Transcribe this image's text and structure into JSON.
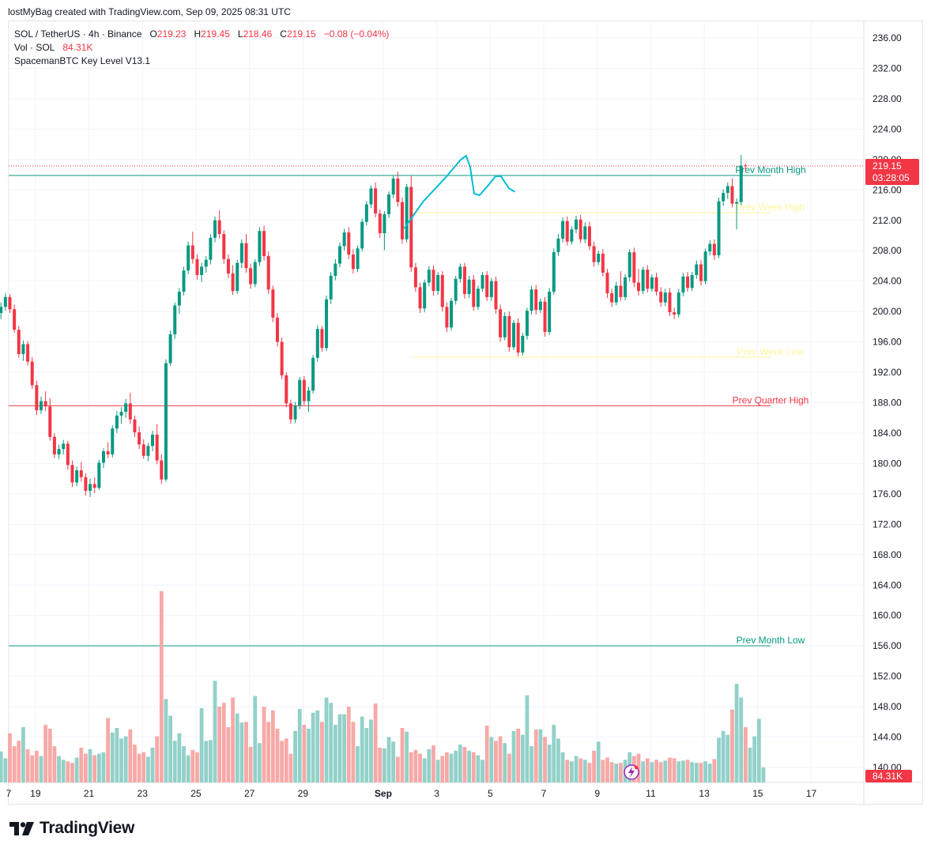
{
  "credit": "lostMyBag created with TradingView.com, Sep 09, 2025 08:31 UTC",
  "brand": "TradingView",
  "legend": {
    "symbol": "SOL / TetherUS · 4h · Binance",
    "o_label": "O",
    "o": "219.23",
    "h_label": "H",
    "h": "219.45",
    "l_label": "L",
    "l": "218.46",
    "c_label": "C",
    "c": "219.15",
    "change": "−0.08 (−0.04%)",
    "vol_label": "Vol · SOL",
    "vol": "84.31K",
    "indicator": "SpacemanBTC Key Level V13.1"
  },
  "colors": {
    "up": "#089981",
    "down": "#f23645",
    "vol_up": "#92d1c9",
    "vol_down": "#f7a9a7",
    "accent_line": "#00bcd4",
    "week_level": "#fff59d"
  },
  "chart_data": {
    "type": "candlestick",
    "timeframe": "4h",
    "ylim": [
      138.6,
      238.2
    ],
    "y_ticks": [
      "236.00",
      "232.00",
      "228.00",
      "224.00",
      "220.00",
      "216.00",
      "212.00",
      "208.00",
      "204.00",
      "200.00",
      "196.00",
      "192.00",
      "188.00",
      "184.00",
      "180.00",
      "176.00",
      "172.00",
      "168.00",
      "164.00",
      "160.00",
      "156.00",
      "152.00",
      "148.00",
      "144.00",
      "140.00"
    ],
    "x_ticks": [
      {
        "label": "7",
        "day": 0
      },
      {
        "label": "19",
        "day": 1
      },
      {
        "label": "21",
        "day": 3
      },
      {
        "label": "23",
        "day": 5
      },
      {
        "label": "25",
        "day": 7
      },
      {
        "label": "27",
        "day": 9
      },
      {
        "label": "29",
        "day": 11
      },
      {
        "label": "Sep",
        "day": 14
      },
      {
        "label": "3",
        "day": 16
      },
      {
        "label": "5",
        "day": 18
      },
      {
        "label": "7",
        "day": 20
      },
      {
        "label": "9",
        "day": 22
      },
      {
        "label": "11",
        "day": 24
      },
      {
        "label": "13",
        "day": 26
      },
      {
        "label": "15",
        "day": 28
      },
      {
        "label": "17",
        "day": 30
      }
    ],
    "last_price": "219.15",
    "countdown": "03:28:05",
    "last_volume": "84.31K",
    "levels": [
      {
        "name": "Prev Month High",
        "value": 217.9,
        "color": "#089981",
        "from_day": 0
      },
      {
        "name": "Prev Week High",
        "value": 213.0,
        "color": "#fff59d",
        "from_day": 15
      },
      {
        "name": "Prev Week Low",
        "value": 194.0,
        "color": "#fff59d",
        "from_day": 15
      },
      {
        "name": "Prev Quarter High",
        "value": 187.6,
        "color": "#f23645",
        "from_day": 0
      },
      {
        "name": "Prev Month Low",
        "value": 156.0,
        "color": "#089981",
        "from_day": 0
      }
    ],
    "candles_per_day": 6,
    "start_offset_days": -1.75,
    "candles": [
      [
        199.5,
        202.2,
        199.0,
        201.8
      ],
      [
        201.8,
        203.0,
        201.2,
        202.5
      ],
      [
        202.5,
        203.8,
        201.9,
        203.2
      ],
      [
        203.2,
        204.6,
        202.8,
        204.0
      ],
      [
        204.0,
        205.1,
        201.4,
        201.9
      ],
      [
        201.9,
        202.3,
        200.4,
        200.9
      ],
      [
        200.9,
        201.5,
        199.2,
        199.8
      ],
      [
        199.8,
        201.2,
        199.0,
        200.6
      ],
      [
        200.6,
        202.4,
        200.1,
        201.9
      ],
      [
        201.9,
        202.3,
        199.8,
        200.3
      ],
      [
        200.3,
        200.9,
        197.2,
        197.6
      ],
      [
        197.6,
        198.1,
        193.9,
        194.4
      ],
      [
        194.4,
        196.2,
        193.5,
        195.7
      ],
      [
        195.7,
        196.1,
        192.9,
        193.4
      ],
      [
        193.4,
        194.0,
        189.8,
        190.3
      ],
      [
        190.3,
        190.9,
        186.4,
        187.0
      ],
      [
        187.0,
        188.8,
        186.5,
        188.2
      ],
      [
        188.2,
        189.5,
        186.9,
        187.5
      ],
      [
        187.5,
        188.6,
        183.0,
        183.5
      ],
      [
        183.5,
        184.0,
        180.7,
        181.2
      ],
      [
        181.2,
        182.5,
        180.6,
        181.9
      ],
      [
        181.9,
        183.1,
        181.2,
        182.6
      ],
      [
        182.6,
        183.0,
        179.2,
        179.8
      ],
      [
        179.8,
        180.4,
        176.9,
        177.5
      ],
      [
        177.5,
        179.6,
        177.0,
        179.1
      ],
      [
        179.1,
        180.2,
        177.6,
        178.2
      ],
      [
        178.2,
        178.7,
        175.8,
        176.4
      ],
      [
        176.4,
        178.0,
        175.6,
        177.3
      ],
      [
        177.3,
        178.2,
        176.1,
        176.8
      ],
      [
        176.8,
        180.5,
        176.5,
        180.1
      ],
      [
        180.1,
        182.0,
        179.4,
        181.6
      ],
      [
        181.6,
        182.8,
        180.7,
        181.2
      ],
      [
        181.2,
        185.0,
        180.8,
        184.6
      ],
      [
        184.6,
        186.9,
        184.0,
        186.3
      ],
      [
        186.3,
        187.4,
        185.2,
        186.8
      ],
      [
        186.8,
        188.5,
        186.0,
        187.9
      ],
      [
        187.9,
        189.3,
        185.2,
        185.8
      ],
      [
        185.8,
        186.3,
        183.5,
        184.1
      ],
      [
        184.1,
        184.9,
        181.9,
        182.5
      ],
      [
        182.5,
        183.2,
        180.6,
        181.0
      ],
      [
        181.0,
        182.7,
        180.3,
        182.3
      ],
      [
        182.3,
        184.3,
        181.6,
        183.8
      ],
      [
        183.8,
        185.2,
        179.9,
        180.4
      ],
      [
        180.4,
        181.2,
        177.3,
        177.9
      ],
      [
        177.9,
        193.7,
        177.6,
        193.2
      ],
      [
        193.2,
        197.5,
        192.8,
        197.0
      ],
      [
        197.0,
        201.2,
        196.4,
        200.8
      ],
      [
        200.8,
        203.1,
        199.7,
        202.6
      ],
      [
        202.6,
        205.9,
        202.1,
        205.4
      ],
      [
        205.4,
        209.2,
        204.9,
        208.7
      ],
      [
        208.7,
        210.5,
        206.3,
        206.9
      ],
      [
        206.9,
        207.5,
        204.2,
        204.8
      ],
      [
        204.8,
        206.4,
        203.9,
        205.9
      ],
      [
        205.9,
        207.3,
        205.1,
        206.8
      ],
      [
        206.8,
        210.2,
        206.2,
        209.7
      ],
      [
        209.7,
        212.5,
        209.1,
        212.0
      ],
      [
        212.0,
        213.3,
        209.6,
        210.2
      ],
      [
        210.2,
        210.7,
        206.3,
        206.9
      ],
      [
        206.9,
        207.5,
        204.4,
        205.0
      ],
      [
        205.0,
        206.1,
        202.2,
        202.7
      ],
      [
        202.7,
        206.8,
        202.3,
        206.4
      ],
      [
        206.4,
        209.5,
        205.7,
        209.0
      ],
      [
        209.0,
        210.2,
        205.1,
        205.7
      ],
      [
        205.7,
        206.3,
        203.0,
        203.6
      ],
      [
        203.6,
        206.9,
        203.2,
        206.5
      ],
      [
        206.5,
        211.1,
        206.0,
        210.6
      ],
      [
        210.6,
        211.3,
        206.7,
        207.3
      ],
      [
        207.3,
        207.9,
        202.3,
        202.9
      ],
      [
        202.9,
        203.4,
        198.6,
        199.2
      ],
      [
        199.2,
        199.8,
        195.4,
        196.0
      ],
      [
        196.0,
        196.6,
        191.1,
        191.6
      ],
      [
        191.6,
        192.0,
        187.4,
        187.9
      ],
      [
        187.9,
        188.4,
        185.2,
        185.8
      ],
      [
        185.8,
        188.1,
        185.3,
        187.6
      ],
      [
        187.6,
        191.4,
        187.1,
        191.0
      ],
      [
        191.0,
        191.5,
        187.7,
        188.2
      ],
      [
        188.2,
        190.1,
        186.8,
        189.6
      ],
      [
        189.6,
        194.3,
        189.2,
        193.9
      ],
      [
        193.9,
        198.2,
        193.4,
        197.7
      ],
      [
        197.7,
        198.1,
        194.7,
        195.2
      ],
      [
        195.2,
        202.1,
        194.8,
        201.6
      ],
      [
        201.6,
        205.2,
        201.0,
        204.7
      ],
      [
        204.7,
        206.9,
        204.1,
        206.3
      ],
      [
        206.3,
        209.1,
        205.8,
        208.6
      ],
      [
        208.6,
        210.9,
        208.0,
        210.4
      ],
      [
        210.4,
        211.1,
        206.9,
        207.5
      ],
      [
        207.5,
        208.2,
        205.0,
        205.6
      ],
      [
        205.6,
        208.7,
        205.2,
        208.3
      ],
      [
        208.3,
        212.2,
        207.9,
        211.8
      ],
      [
        211.8,
        214.5,
        211.3,
        214.1
      ],
      [
        214.1,
        216.6,
        213.6,
        216.2
      ],
      [
        216.2,
        217.0,
        212.4,
        212.9
      ],
      [
        212.9,
        213.4,
        209.7,
        210.3
      ],
      [
        210.3,
        213.2,
        208.1,
        212.8
      ],
      [
        212.8,
        215.8,
        212.3,
        215.4
      ],
      [
        215.4,
        217.9,
        214.9,
        217.5
      ],
      [
        217.5,
        218.4,
        213.8,
        214.4
      ],
      [
        214.4,
        215.0,
        208.9,
        209.5
      ],
      [
        209.5,
        216.8,
        209.1,
        216.4
      ],
      [
        216.4,
        217.9,
        205.2,
        205.8
      ],
      [
        205.8,
        206.4,
        202.6,
        203.2
      ],
      [
        203.2,
        203.8,
        199.8,
        200.4
      ],
      [
        200.4,
        204.2,
        199.9,
        203.8
      ],
      [
        203.8,
        206.0,
        203.3,
        205.5
      ],
      [
        205.5,
        206.1,
        202.1,
        202.7
      ],
      [
        202.7,
        205.2,
        202.2,
        204.8
      ],
      [
        204.8,
        205.3,
        200.0,
        200.6
      ],
      [
        200.6,
        201.2,
        197.3,
        197.9
      ],
      [
        197.9,
        201.8,
        197.5,
        201.4
      ],
      [
        201.4,
        204.7,
        200.9,
        204.3
      ],
      [
        204.3,
        206.3,
        203.8,
        205.9
      ],
      [
        205.9,
        206.4,
        201.7,
        202.3
      ],
      [
        202.3,
        204.7,
        201.8,
        204.2
      ],
      [
        204.2,
        204.8,
        200.1,
        200.6
      ],
      [
        200.6,
        203.4,
        200.2,
        203.0
      ],
      [
        203.0,
        205.2,
        202.6,
        204.8
      ],
      [
        204.8,
        205.3,
        201.4,
        201.9
      ],
      [
        201.9,
        204.4,
        201.4,
        204.0
      ],
      [
        204.0,
        204.6,
        199.7,
        200.3
      ],
      [
        200.3,
        200.9,
        196.0,
        196.6
      ],
      [
        196.6,
        199.9,
        196.2,
        199.4
      ],
      [
        199.4,
        200.0,
        194.7,
        195.3
      ],
      [
        195.3,
        198.9,
        194.9,
        198.5
      ],
      [
        198.5,
        199.1,
        194.1,
        194.6
      ],
      [
        194.6,
        197.2,
        194.2,
        196.8
      ],
      [
        196.8,
        200.5,
        196.3,
        200.1
      ],
      [
        200.1,
        203.4,
        199.6,
        202.9
      ],
      [
        202.9,
        203.5,
        199.6,
        200.2
      ],
      [
        200.2,
        201.7,
        199.8,
        201.3
      ],
      [
        201.3,
        201.9,
        196.7,
        197.3
      ],
      [
        197.3,
        203.1,
        196.9,
        202.6
      ],
      [
        202.6,
        208.3,
        202.2,
        207.8
      ],
      [
        207.8,
        210.2,
        207.3,
        209.6
      ],
      [
        209.6,
        212.4,
        209.1,
        211.9
      ],
      [
        211.9,
        212.5,
        208.7,
        209.2
      ],
      [
        209.2,
        211.2,
        208.8,
        210.8
      ],
      [
        210.8,
        212.6,
        210.3,
        212.1
      ],
      [
        212.1,
        212.7,
        209.0,
        209.5
      ],
      [
        209.5,
        211.7,
        209.0,
        211.2
      ],
      [
        211.2,
        211.8,
        208.1,
        208.6
      ],
      [
        208.6,
        209.2,
        205.9,
        206.5
      ],
      [
        206.5,
        208.0,
        206.1,
        207.6
      ],
      [
        207.6,
        208.2,
        204.6,
        205.1
      ],
      [
        205.1,
        205.6,
        201.8,
        202.4
      ],
      [
        202.4,
        203.0,
        200.6,
        201.2
      ],
      [
        201.2,
        203.9,
        200.8,
        203.4
      ],
      [
        203.4,
        205.3,
        201.4,
        201.9
      ],
      [
        201.9,
        204.9,
        201.5,
        204.5
      ],
      [
        204.5,
        208.2,
        204.0,
        207.8
      ],
      [
        207.8,
        208.4,
        203.2,
        203.8
      ],
      [
        203.8,
        205.6,
        202.1,
        202.7
      ],
      [
        202.7,
        205.9,
        202.3,
        205.5
      ],
      [
        205.5,
        206.1,
        202.5,
        203.0
      ],
      [
        203.0,
        204.9,
        202.6,
        204.5
      ],
      [
        204.5,
        205.1,
        202.1,
        202.6
      ],
      [
        202.6,
        203.2,
        200.6,
        201.2
      ],
      [
        201.2,
        203.0,
        200.7,
        202.5
      ],
      [
        202.5,
        203.1,
        199.4,
        199.9
      ],
      [
        199.9,
        200.5,
        199.0,
        199.6
      ],
      [
        199.6,
        203.0,
        199.2,
        202.5
      ],
      [
        202.5,
        205.1,
        202.0,
        204.6
      ],
      [
        204.6,
        205.2,
        202.6,
        203.1
      ],
      [
        203.1,
        205.2,
        202.7,
        204.8
      ],
      [
        204.8,
        206.7,
        204.3,
        206.2
      ],
      [
        206.2,
        206.8,
        203.4,
        204.0
      ],
      [
        204.0,
        208.3,
        203.6,
        207.9
      ],
      [
        207.9,
        209.4,
        207.4,
        208.9
      ],
      [
        208.9,
        209.5,
        206.8,
        207.4
      ],
      [
        207.4,
        215.0,
        207.0,
        214.5
      ],
      [
        214.5,
        216.1,
        213.9,
        215.6
      ],
      [
        215.6,
        217.0,
        214.8,
        216.5
      ],
      [
        216.5,
        217.5,
        213.7,
        214.2
      ],
      [
        214.2,
        214.9,
        210.8,
        214.4
      ],
      [
        214.4,
        220.6,
        214.0,
        219.2
      ],
      [
        219.23,
        219.45,
        218.46,
        219.15
      ]
    ],
    "volume_scale": [
      138.6,
      164.0
    ],
    "volume": [
      141.8,
      142.0,
      142.8,
      142.2,
      143.1,
      146.4,
      143.7,
      142.1,
      141.2,
      144.5,
      142.8,
      143.5,
      145.3,
      142.4,
      141.6,
      142.2,
      141.5,
      145.6,
      145.1,
      142.8,
      141.5,
      141.0,
      140.8,
      140.6,
      141.3,
      142.6,
      141.8,
      142.4,
      141.6,
      141.8,
      142.0,
      146.5,
      144.6,
      145.2,
      143.8,
      144.1,
      145.0,
      143.0,
      141.8,
      142.0,
      141.4,
      142.6,
      144.1,
      163.2,
      149.0,
      146.8,
      143.5,
      144.5,
      142.8,
      141.6,
      142.3,
      142.0,
      147.8,
      143.5,
      143.6,
      151.4,
      148.0,
      148.5,
      145.3,
      149.2,
      147.1,
      145.9,
      146.0,
      142.7,
      149.4,
      143.2,
      148.0,
      146.0,
      147.5,
      145.1,
      143.5,
      143.8,
      141.8,
      144.8,
      147.7,
      145.6,
      145.1,
      147.2,
      147.5,
      146.0,
      149.2,
      148.5,
      145.6,
      147.0,
      147.0,
      148.0,
      146.0,
      142.8,
      146.7,
      145.2,
      146.3,
      148.4,
      142.6,
      142.5,
      144.0,
      143.4,
      141.4,
      145.2,
      144.7,
      142.0,
      142.3,
      141.8,
      141.2,
      142.4,
      142.9,
      141.0,
      141.5,
      142.0,
      141.8,
      142.2,
      143.0,
      142.7,
      142.2,
      142.0,
      141.6,
      141.0,
      145.5,
      144.0,
      143.5,
      144.1,
      143.2,
      141.8,
      144.8,
      145.1,
      144.3,
      149.5,
      142.8,
      145.0,
      145.0,
      144.0,
      143.0,
      145.6,
      143.8,
      142.0,
      141.0,
      140.8,
      141.5,
      141.2,
      141.0,
      140.6,
      142.2,
      143.4,
      141.0,
      141.3,
      140.7,
      140.5,
      140.6,
      141.0,
      142.0,
      141.5,
      141.8,
      140.8,
      141.2,
      140.7,
      141.0,
      140.7,
      140.9,
      141.3,
      141.2,
      140.8,
      140.9,
      141.0,
      140.7,
      140.6,
      140.6,
      140.8,
      140.5,
      141.1,
      143.9,
      144.8,
      144.3,
      147.6,
      151.0,
      149.2,
      145.3,
      142.6,
      144.1,
      146.4,
      140.0
    ]
  }
}
